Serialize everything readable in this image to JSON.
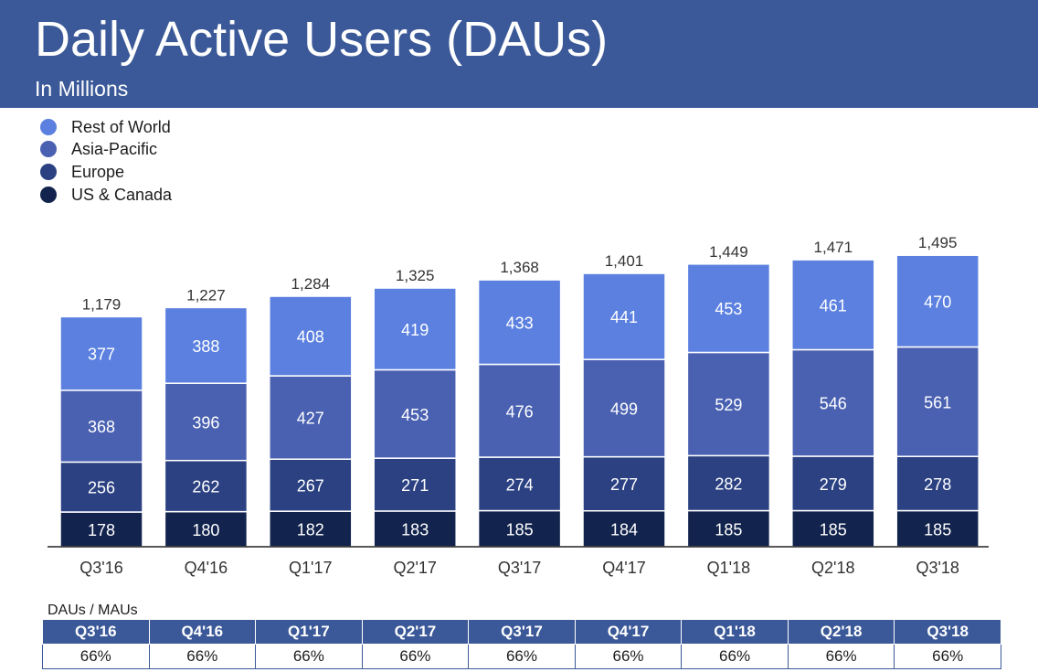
{
  "header": {
    "title": "Daily Active Users (DAUs)",
    "subtitle": "In Millions"
  },
  "colors": {
    "header_bg": "#3b5998",
    "rest_of_world": "#5b80e0",
    "asia_pacific": "#4a61b2",
    "europe": "#2b4182",
    "us_canada": "#12234d"
  },
  "chart_data": {
    "type": "bar",
    "stacked": true,
    "categories": [
      "Q3'16",
      "Q4'16",
      "Q1'17",
      "Q2'17",
      "Q3'17",
      "Q4'17",
      "Q1'18",
      "Q2'18",
      "Q3'18"
    ],
    "series": [
      {
        "name": "US & Canada",
        "color": "#12234d",
        "values": [
          178,
          180,
          182,
          183,
          185,
          184,
          185,
          185,
          185
        ]
      },
      {
        "name": "Europe",
        "color": "#2b4182",
        "values": [
          256,
          262,
          267,
          271,
          274,
          277,
          282,
          279,
          278
        ]
      },
      {
        "name": "Asia-Pacific",
        "color": "#4a61b2",
        "values": [
          368,
          396,
          427,
          453,
          476,
          499,
          529,
          546,
          561
        ]
      },
      {
        "name": "Rest of World",
        "color": "#5b80e0",
        "values": [
          377,
          388,
          408,
          419,
          433,
          441,
          453,
          461,
          470
        ]
      }
    ],
    "totals": [
      "1,179",
      "1,227",
      "1,284",
      "1,325",
      "1,368",
      "1,401",
      "1,449",
      "1,471",
      "1,495"
    ],
    "ylim": [
      0,
      1495
    ],
    "grid": false,
    "legend_order": [
      "Rest of World",
      "Asia-Pacific",
      "Europe",
      "US & Canada"
    ],
    "legend_placement": "top-left"
  },
  "ratio_table": {
    "title": "DAUs / MAUs",
    "columns": [
      "Q3'16",
      "Q4'16",
      "Q1'17",
      "Q2'17",
      "Q3'17",
      "Q4'17",
      "Q1'18",
      "Q2'18",
      "Q3'18"
    ],
    "values": [
      "66%",
      "66%",
      "66%",
      "66%",
      "66%",
      "66%",
      "66%",
      "66%",
      "66%"
    ]
  }
}
